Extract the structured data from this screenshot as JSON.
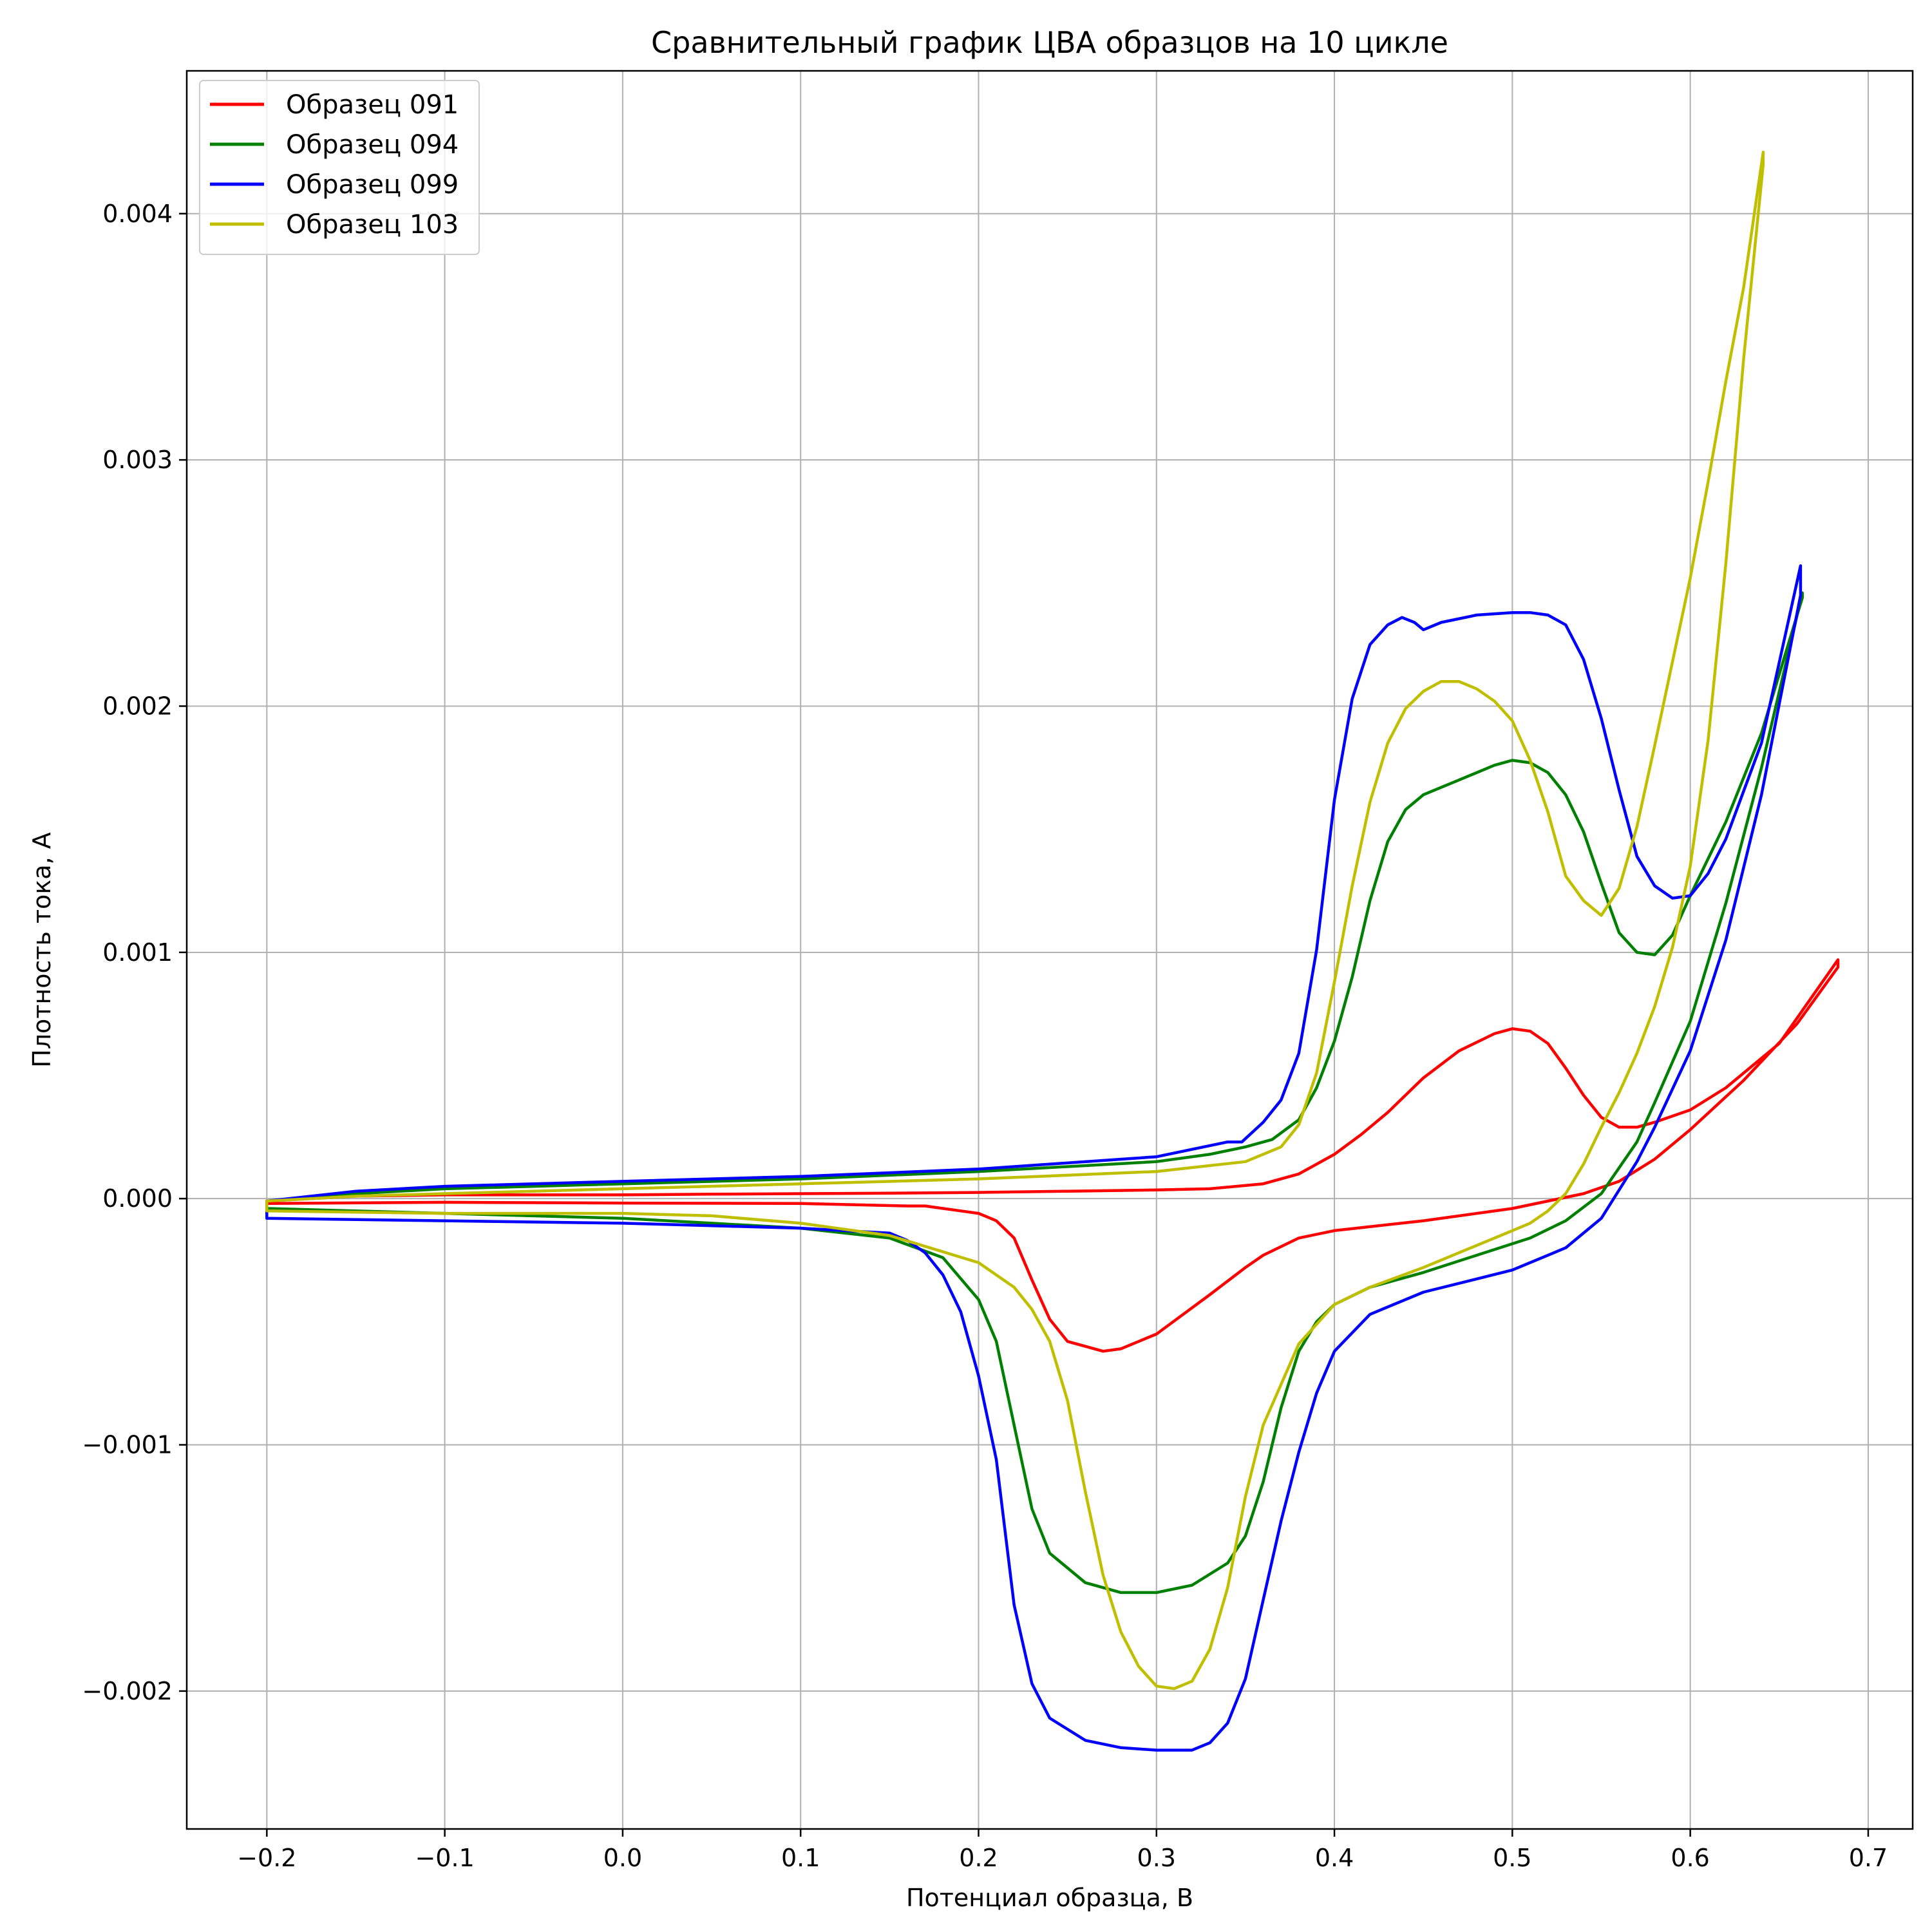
{
  "chart_data": {
    "type": "line",
    "title": "Сравнительный график ЦВА образцов на 10 цикле",
    "xlabel": "Потенциал образца, В",
    "ylabel": "Плотность тока, А",
    "xlim": [
      -0.245,
      0.725
    ],
    "ylim": [
      -0.00256,
      0.00458
    ],
    "xticks": [
      -0.2,
      -0.1,
      0.0,
      0.1,
      0.2,
      0.3,
      0.4,
      0.5,
      0.6,
      0.7
    ],
    "xtick_labels": [
      "−0.2",
      "−0.1",
      "0.0",
      "0.1",
      "0.2",
      "0.3",
      "0.4",
      "0.5",
      "0.6",
      "0.7"
    ],
    "yticks": [
      -0.002,
      -0.001,
      0.0,
      0.001,
      0.002,
      0.003,
      0.004
    ],
    "ytick_labels": [
      "−0.002",
      "−0.001",
      "0.000",
      "0.001",
      "0.002",
      "0.003",
      "0.004"
    ],
    "grid": true,
    "legend_position": "top-left",
    "series": [
      {
        "name": "Образец 091",
        "color": "#ff0000",
        "x": [
          -0.2,
          -0.15,
          -0.1,
          -0.05,
          0.0,
          0.05,
          0.1,
          0.15,
          0.2,
          0.25,
          0.3,
          0.33,
          0.36,
          0.38,
          0.4,
          0.415,
          0.43,
          0.45,
          0.47,
          0.49,
          0.5,
          0.51,
          0.52,
          0.53,
          0.54,
          0.55,
          0.56,
          0.57,
          0.58,
          0.6,
          0.62,
          0.65,
          0.683,
          0.683,
          0.66,
          0.63,
          0.6,
          0.58,
          0.56,
          0.54,
          0.52,
          0.5,
          0.45,
          0.4,
          0.38,
          0.36,
          0.35,
          0.33,
          0.3,
          0.28,
          0.27,
          0.25,
          0.24,
          0.23,
          0.22,
          0.21,
          0.2,
          0.19,
          0.17,
          0.16,
          0.1,
          0.0,
          -0.1,
          -0.2,
          -0.2
        ],
        "y": [
          -1e-05,
          1e-05,
          1.5e-05,
          1.5e-05,
          1.5e-05,
          1.8e-05,
          2e-05,
          2.2e-05,
          2.5e-05,
          3e-05,
          3.5e-05,
          4e-05,
          6e-05,
          0.0001,
          0.00018,
          0.00026,
          0.00035,
          0.00049,
          0.0006,
          0.00067,
          0.00069,
          0.00068,
          0.00063,
          0.00053,
          0.00042,
          0.00033,
          0.00029,
          0.00029,
          0.00031,
          0.00036,
          0.00045,
          0.00063,
          0.00097,
          0.00094,
          0.00071,
          0.00048,
          0.00028,
          0.00016,
          7e-05,
          2e-05,
          -1e-05,
          -4e-05,
          -9e-05,
          -0.00013,
          -0.00016,
          -0.00023,
          -0.00028,
          -0.00039,
          -0.00055,
          -0.00061,
          -0.00062,
          -0.00058,
          -0.00049,
          -0.00033,
          -0.00016,
          -9e-05,
          -6e-05,
          -5e-05,
          -3e-05,
          -3e-05,
          -2e-05,
          -1.8e-05,
          -1.5e-05,
          -2e-05,
          -1e-05
        ]
      },
      {
        "name": "Образец 094",
        "color": "#008000",
        "x": [
          -0.2,
          -0.15,
          -0.1,
          -0.05,
          0.0,
          0.1,
          0.2,
          0.3,
          0.33,
          0.35,
          0.365,
          0.38,
          0.39,
          0.4,
          0.41,
          0.42,
          0.43,
          0.44,
          0.45,
          0.47,
          0.49,
          0.5,
          0.51,
          0.52,
          0.53,
          0.54,
          0.55,
          0.56,
          0.57,
          0.58,
          0.59,
          0.6,
          0.62,
          0.64,
          0.663,
          0.663,
          0.64,
          0.62,
          0.6,
          0.58,
          0.57,
          0.55,
          0.53,
          0.51,
          0.48,
          0.45,
          0.42,
          0.4,
          0.39,
          0.38,
          0.37,
          0.36,
          0.35,
          0.34,
          0.32,
          0.3,
          0.28,
          0.26,
          0.24,
          0.23,
          0.22,
          0.21,
          0.2,
          0.18,
          0.15,
          0.1,
          0.05,
          0.0,
          -0.1,
          -0.2,
          -0.2
        ],
        "y": [
          -1e-05,
          2e-05,
          4e-05,
          5e-05,
          6e-05,
          8e-05,
          0.00011,
          0.00015,
          0.00018,
          0.00021,
          0.00024,
          0.00032,
          0.00045,
          0.00064,
          0.0009,
          0.00121,
          0.00145,
          0.00158,
          0.00164,
          0.0017,
          0.00176,
          0.00178,
          0.00177,
          0.00173,
          0.00164,
          0.00149,
          0.00128,
          0.00108,
          0.001,
          0.00099,
          0.00107,
          0.00123,
          0.00153,
          0.00189,
          0.00244,
          0.00246,
          0.00175,
          0.0012,
          0.00072,
          0.00039,
          0.00023,
          2e-05,
          -9e-05,
          -0.00016,
          -0.00023,
          -0.0003,
          -0.00036,
          -0.00043,
          -0.0005,
          -0.00062,
          -0.00085,
          -0.00115,
          -0.00137,
          -0.00148,
          -0.00157,
          -0.0016,
          -0.0016,
          -0.00156,
          -0.00144,
          -0.00126,
          -0.00092,
          -0.00058,
          -0.00041,
          -0.00024,
          -0.00016,
          -0.00012,
          -0.0001,
          -8e-05,
          -6e-05,
          -4e-05,
          -1e-05
        ]
      },
      {
        "name": "Образец 099",
        "color": "#0000ff",
        "x": [
          -0.2,
          -0.15,
          -0.1,
          -0.05,
          0.0,
          0.1,
          0.2,
          0.3,
          0.32,
          0.34,
          0.348,
          0.36,
          0.37,
          0.38,
          0.39,
          0.4,
          0.41,
          0.42,
          0.43,
          0.438,
          0.445,
          0.45,
          0.46,
          0.48,
          0.5,
          0.51,
          0.52,
          0.53,
          0.54,
          0.55,
          0.56,
          0.57,
          0.58,
          0.59,
          0.6,
          0.61,
          0.62,
          0.64,
          0.662,
          0.662,
          0.64,
          0.62,
          0.6,
          0.58,
          0.57,
          0.55,
          0.53,
          0.5,
          0.45,
          0.42,
          0.4,
          0.39,
          0.38,
          0.37,
          0.36,
          0.35,
          0.34,
          0.33,
          0.32,
          0.31,
          0.3,
          0.28,
          0.26,
          0.24,
          0.23,
          0.22,
          0.21,
          0.2,
          0.19,
          0.18,
          0.17,
          0.16,
          0.15,
          0.1,
          0.0,
          -0.1,
          -0.2,
          -0.2
        ],
        "y": [
          -1e-05,
          3e-05,
          5e-05,
          6e-05,
          7e-05,
          9e-05,
          0.00012,
          0.00017,
          0.0002,
          0.00023,
          0.00023,
          0.00031,
          0.0004,
          0.00059,
          0.00101,
          0.00162,
          0.00203,
          0.00225,
          0.00233,
          0.00236,
          0.00234,
          0.00231,
          0.00234,
          0.00237,
          0.00238,
          0.00238,
          0.00237,
          0.00233,
          0.00219,
          0.00195,
          0.00166,
          0.00139,
          0.00127,
          0.00122,
          0.00123,
          0.00132,
          0.00146,
          0.00185,
          0.00257,
          0.00245,
          0.00164,
          0.00105,
          0.0006,
          0.00029,
          0.00015,
          -8e-05,
          -0.0002,
          -0.00029,
          -0.00038,
          -0.00047,
          -0.00062,
          -0.00079,
          -0.00103,
          -0.00131,
          -0.00163,
          -0.00195,
          -0.00213,
          -0.00221,
          -0.00224,
          -0.00224,
          -0.00224,
          -0.00223,
          -0.0022,
          -0.00211,
          -0.00197,
          -0.00165,
          -0.00106,
          -0.00072,
          -0.00046,
          -0.00031,
          -0.00022,
          -0.00017,
          -0.00014,
          -0.00012,
          -0.0001,
          -9e-05,
          -8e-05,
          -1e-05
        ]
      },
      {
        "name": "Образец 103",
        "color": "#bfbf00",
        "x": [
          -0.2,
          -0.15,
          -0.1,
          -0.05,
          0.0,
          0.1,
          0.2,
          0.3,
          0.35,
          0.37,
          0.38,
          0.39,
          0.4,
          0.41,
          0.42,
          0.43,
          0.44,
          0.45,
          0.46,
          0.47,
          0.48,
          0.49,
          0.5,
          0.51,
          0.52,
          0.53,
          0.54,
          0.55,
          0.56,
          0.57,
          0.58,
          0.59,
          0.6,
          0.61,
          0.62,
          0.63,
          0.641,
          0.641,
          0.63,
          0.62,
          0.61,
          0.6,
          0.59,
          0.58,
          0.57,
          0.56,
          0.55,
          0.54,
          0.53,
          0.52,
          0.51,
          0.5,
          0.45,
          0.42,
          0.4,
          0.38,
          0.36,
          0.35,
          0.34,
          0.33,
          0.32,
          0.31,
          0.3,
          0.29,
          0.28,
          0.27,
          0.26,
          0.25,
          0.24,
          0.23,
          0.22,
          0.2,
          0.15,
          0.1,
          0.05,
          0.0,
          -0.1,
          -0.2,
          -0.2
        ],
        "y": [
          -1e-05,
          1e-05,
          2e-05,
          3e-05,
          4e-05,
          6e-05,
          8e-05,
          0.00011,
          0.00015,
          0.00021,
          0.0003,
          0.00051,
          0.00088,
          0.00127,
          0.00161,
          0.00185,
          0.00199,
          0.00206,
          0.0021,
          0.0021,
          0.00207,
          0.00202,
          0.00194,
          0.00178,
          0.00157,
          0.00131,
          0.00121,
          0.00115,
          0.00126,
          0.00151,
          0.00184,
          0.00218,
          0.00252,
          0.00291,
          0.00332,
          0.0037,
          0.00425,
          0.0042,
          0.00341,
          0.00258,
          0.00186,
          0.00135,
          0.00102,
          0.00078,
          0.00059,
          0.00043,
          0.00029,
          0.00014,
          2e-05,
          -5e-05,
          -0.0001,
          -0.00013,
          -0.00028,
          -0.00036,
          -0.00043,
          -0.00059,
          -0.00092,
          -0.00121,
          -0.00158,
          -0.00183,
          -0.00196,
          -0.00199,
          -0.00198,
          -0.0019,
          -0.00176,
          -0.00153,
          -0.00119,
          -0.00082,
          -0.00058,
          -0.00045,
          -0.00036,
          -0.00026,
          -0.00015,
          -0.0001,
          -7e-05,
          -6e-05,
          -6e-05,
          -5e-05,
          -1e-05
        ]
      }
    ]
  }
}
